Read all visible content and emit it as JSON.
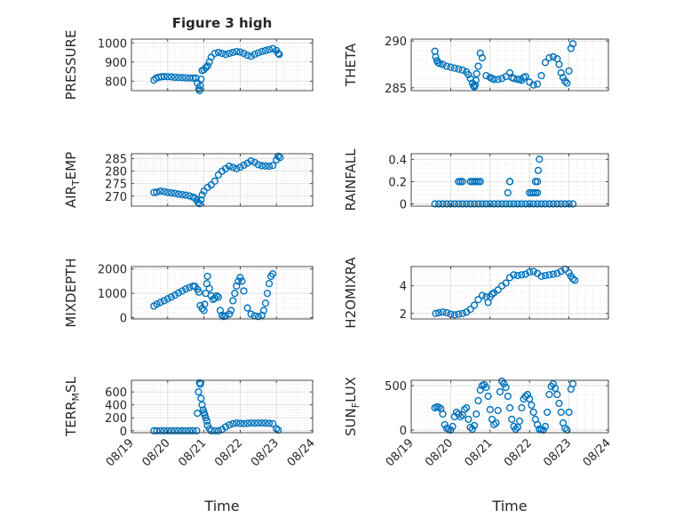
{
  "figure": {
    "background": "#ffffff",
    "marker_color": "#0072BD",
    "x_title": "Time",
    "x_tick_labels": [
      "08/19",
      "08/20",
      "08/21",
      "08/22",
      "08/23",
      "08/24"
    ]
  },
  "chart_data": [
    {
      "type": "scatter",
      "title": "Figure 3 high",
      "ylabel": "PRESSURE",
      "ylim": [
        750,
        1020
      ],
      "yticks": [
        800,
        900,
        1000
      ],
      "xlim": [
        0,
        5
      ],
      "grid": true,
      "series": [
        {
          "x": [
            0.62,
            0.68,
            0.75,
            0.82,
            0.9,
            1,
            1.1,
            1.2,
            1.3,
            1.4,
            1.5,
            1.6,
            1.7,
            1.78,
            1.82,
            1.86,
            1.88,
            1.9,
            1.92,
            1.95,
            2,
            2.05,
            2.1,
            2.15,
            2.2,
            2.3,
            2.4,
            2.5,
            2.6,
            2.7,
            2.8,
            2.9,
            3,
            3.1,
            3.2,
            3.3,
            3.4,
            3.5,
            3.6,
            3.7,
            3.8,
            3.9,
            4,
            4.05,
            4.08
          ],
          "y": [
            805,
            815,
            820,
            822,
            824,
            823,
            822,
            820,
            819,
            818,
            817,
            816,
            816,
            815,
            790,
            760,
            750,
            775,
            810,
            855,
            860,
            870,
            880,
            900,
            925,
            945,
            950,
            945,
            940,
            945,
            950,
            955,
            952,
            945,
            935,
            930,
            940,
            948,
            955,
            960,
            965,
            970,
            960,
            945,
            940
          ]
        }
      ]
    },
    {
      "type": "scatter",
      "ylabel": "THETA",
      "ylim": [
        284.7,
        290.2
      ],
      "yticks": [
        285,
        290
      ],
      "xlim": [
        0,
        5
      ],
      "grid": true,
      "series": [
        {
          "x": [
            0.6,
            0.62,
            0.65,
            0.68,
            0.72,
            0.8,
            0.9,
            1,
            1.1,
            1.2,
            1.3,
            1.4,
            1.45,
            1.5,
            1.55,
            1.58,
            1.6,
            1.62,
            1.64,
            1.66,
            1.7,
            1.75,
            1.8,
            1.9,
            2,
            2.05,
            2.1,
            2.2,
            2.3,
            2.4,
            2.5,
            2.55,
            2.6,
            2.7,
            2.75,
            2.8,
            2.85,
            2.9,
            3,
            3.1,
            3.2,
            3.3,
            3.4,
            3.5,
            3.6,
            3.7,
            3.75,
            3.8,
            3.85,
            3.9,
            3.95,
            4,
            4.05,
            4.1
          ],
          "y": [
            288.9,
            288.3,
            287.9,
            287.7,
            287.6,
            287.5,
            287.3,
            287.2,
            287.1,
            287,
            286.9,
            286.7,
            286.4,
            286,
            285.5,
            285.2,
            285.1,
            285.3,
            285.8,
            286.5,
            287.3,
            288.7,
            288.2,
            286.3,
            286.1,
            286,
            285.9,
            285.9,
            286,
            286.2,
            286.6,
            286.1,
            286,
            285.9,
            285.9,
            285.8,
            286.1,
            286.2,
            285.6,
            285.3,
            285.4,
            286.3,
            287.7,
            288.2,
            288.3,
            288.1,
            287.5,
            286.6,
            286.1,
            285.7,
            285.5,
            286.8,
            289.2,
            289.7
          ]
        }
      ]
    },
    {
      "type": "scatter",
      "ylabel": "AIR_TEMP",
      "ylim": [
        266,
        287
      ],
      "yticks": [
        270,
        275,
        280,
        285
      ],
      "xlim": [
        0,
        5
      ],
      "grid": true,
      "series": [
        {
          "x": [
            0.62,
            0.7,
            0.8,
            0.9,
            1,
            1.1,
            1.2,
            1.3,
            1.4,
            1.5,
            1.6,
            1.7,
            1.75,
            1.8,
            1.84,
            1.88,
            1.92,
            1.95,
            2,
            2.1,
            2.2,
            2.3,
            2.4,
            2.5,
            2.6,
            2.7,
            2.8,
            2.9,
            3,
            3.1,
            3.2,
            3.3,
            3.4,
            3.5,
            3.6,
            3.7,
            3.8,
            3.9,
            4,
            4.05,
            4.1
          ],
          "y": [
            271.5,
            271.6,
            272,
            271.8,
            271.5,
            271.3,
            271.1,
            270.8,
            270.6,
            270.4,
            270.1,
            269.6,
            269.2,
            268.5,
            267.5,
            267,
            268.5,
            270.5,
            272,
            273.5,
            274.5,
            276,
            278.5,
            280,
            281,
            282,
            281.5,
            281,
            281.6,
            282.4,
            283.2,
            284.1,
            283.5,
            282.6,
            282.2,
            282.1,
            282,
            282.3,
            284.5,
            286,
            285.5
          ]
        }
      ]
    },
    {
      "type": "scatter",
      "ylabel": "RAINFALL",
      "ylim": [
        -0.02,
        0.45
      ],
      "yticks": [
        0,
        0.2,
        0.4
      ],
      "xlim": [
        0,
        5
      ],
      "grid": true,
      "series": [
        {
          "x": [
            0.6,
            0.7,
            0.8,
            0.9,
            1,
            1.1,
            1.2,
            1.3,
            1.4,
            1.5,
            1.6,
            1.7,
            1.8,
            1.9,
            2,
            2.1,
            2.2,
            2.3,
            2.4,
            2.5,
            2.6,
            2.7,
            2.8,
            2.9,
            3,
            3.1,
            3.2,
            3.3,
            3.4,
            3.5,
            3.6,
            3.7,
            3.8,
            3.9,
            4,
            4.1,
            1.2,
            1.25,
            1.3,
            1.5,
            1.55,
            1.6,
            1.65,
            1.7,
            1.75,
            2.45,
            2.5,
            2.5,
            3.0,
            3.05,
            3.1,
            3.15,
            3.2,
            3.15,
            3.2,
            3.22,
            3.25
          ],
          "y": [
            0,
            0,
            0,
            0,
            0,
            0,
            0,
            0,
            0,
            0,
            0,
            0,
            0,
            0,
            0,
            0,
            0,
            0,
            0,
            0,
            0,
            0,
            0,
            0,
            0,
            0,
            0,
            0,
            0,
            0,
            0,
            0,
            0,
            0,
            0,
            0,
            0.2,
            0.2,
            0.2,
            0.2,
            0.2,
            0.2,
            0.2,
            0.2,
            0.2,
            0.1,
            0.2,
            0.2,
            0.1,
            0.1,
            0.1,
            0.1,
            0.1,
            0.2,
            0.2,
            0.3,
            0.4
          ]
        }
      ]
    },
    {
      "type": "scatter",
      "ylabel": "MIXDEPTH",
      "ylim": [
        -50,
        2100
      ],
      "yticks": [
        0,
        1000,
        2000
      ],
      "xlim": [
        0,
        5
      ],
      "grid": true,
      "series": [
        {
          "x": [
            0.62,
            0.7,
            0.8,
            0.9,
            1,
            1.1,
            1.2,
            1.3,
            1.4,
            1.5,
            1.6,
            1.7,
            1.75,
            1.82,
            1.86,
            1.9,
            1.95,
            2,
            2.02,
            2.05,
            2.08,
            2.1,
            2.15,
            2.2,
            2.25,
            2.3,
            2.35,
            2.4,
            2.45,
            2.5,
            2.55,
            2.6,
            2.7,
            2.75,
            2.8,
            2.85,
            2.9,
            2.95,
            3,
            3.05,
            3.1,
            3.2,
            3.3,
            3.4,
            3.5,
            3.6,
            3.65,
            3.7,
            3.75,
            3.8,
            3.85,
            3.9
          ],
          "y": [
            480,
            560,
            630,
            700,
            780,
            850,
            930,
            1020,
            1100,
            1180,
            1240,
            1300,
            1290,
            1170,
            1050,
            500,
            380,
            300,
            550,
            1000,
            1400,
            1700,
            1200,
            900,
            750,
            800,
            900,
            850,
            300,
            100,
            50,
            80,
            150,
            300,
            700,
            1000,
            1300,
            1500,
            1650,
            1500,
            1100,
            400,
            150,
            80,
            50,
            100,
            300,
            600,
            1000,
            1400,
            1700,
            1800
          ]
        }
      ]
    },
    {
      "type": "scatter",
      "ylabel": "H2OMIXRA",
      "ylim": [
        1.6,
        5.4
      ],
      "yticks": [
        2,
        4
      ],
      "xlim": [
        0,
        5
      ],
      "grid": true,
      "series": [
        {
          "x": [
            0.62,
            0.7,
            0.8,
            0.9,
            1,
            1.1,
            1.2,
            1.3,
            1.4,
            1.5,
            1.6,
            1.7,
            1.8,
            1.9,
            1.95,
            2,
            2.05,
            2.1,
            2.2,
            2.3,
            2.4,
            2.5,
            2.6,
            2.7,
            2.8,
            2.9,
            3,
            3.1,
            3.2,
            3.3,
            3.4,
            3.5,
            3.6,
            3.7,
            3.8,
            3.9,
            4,
            4.05,
            4.1,
            4.15
          ],
          "y": [
            2,
            2.05,
            2.1,
            2.05,
            1.95,
            1.9,
            1.95,
            2,
            2.1,
            2.3,
            2.6,
            3.0,
            3.3,
            3.2,
            2.8,
            3.2,
            3.4,
            3.5,
            3.7,
            4.0,
            4.2,
            4.6,
            4.8,
            4.75,
            4.8,
            4.85,
            5.0,
            5.05,
            4.9,
            4.7,
            4.75,
            4.8,
            4.85,
            4.9,
            5.05,
            5.2,
            4.95,
            4.7,
            4.5,
            4.4
          ]
        }
      ]
    },
    {
      "type": "scatter",
      "ylabel": "TERR_MSL",
      "ylim": [
        -30,
        780
      ],
      "yticks": [
        0,
        200,
        400,
        600
      ],
      "xlim": [
        0,
        5
      ],
      "grid": true,
      "series": [
        {
          "x": [
            0.62,
            0.7,
            0.8,
            0.9,
            1,
            1.1,
            1.2,
            1.3,
            1.4,
            1.5,
            1.6,
            1.7,
            1.8,
            1.82,
            1.85,
            1.88,
            1.9,
            1.92,
            1.95,
            1.98,
            2,
            2.02,
            2.05,
            2.08,
            2.1,
            2.15,
            2.2,
            2.3,
            2.4,
            2.5,
            2.6,
            2.7,
            2.8,
            2.9,
            3,
            3.1,
            3.2,
            3.3,
            3.4,
            3.5,
            3.6,
            3.7,
            3.8,
            3.9,
            4,
            4.05
          ],
          "y": [
            0,
            0,
            0,
            0,
            0,
            0,
            0,
            0,
            0,
            0,
            0,
            0,
            0,
            270,
            600,
            740,
            720,
            500,
            400,
            320,
            280,
            250,
            200,
            150,
            80,
            30,
            0,
            0,
            0,
            20,
            60,
            90,
            110,
            120,
            115,
            110,
            115,
            120,
            118,
            120,
            120,
            118,
            115,
            110,
            30,
            10
          ]
        }
      ]
    },
    {
      "type": "scatter",
      "ylabel": "SUN_FLUX",
      "ylim": [
        -30,
        560
      ],
      "yticks": [
        0,
        500
      ],
      "xlim": [
        0,
        5
      ],
      "grid": true,
      "series": [
        {
          "x": [
            0.6,
            0.65,
            0.7,
            0.75,
            0.8,
            0.85,
            0.9,
            0.95,
            1,
            1.05,
            1.1,
            1.15,
            1.2,
            1.25,
            1.3,
            1.35,
            1.4,
            1.45,
            1.5,
            1.55,
            1.6,
            1.65,
            1.7,
            1.75,
            1.8,
            1.85,
            1.9,
            1.95,
            2,
            2.05,
            2.1,
            2.15,
            2.2,
            2.25,
            2.3,
            2.35,
            2.4,
            2.45,
            2.5,
            2.55,
            2.6,
            2.65,
            2.7,
            2.75,
            2.8,
            2.85,
            2.9,
            2.95,
            3,
            3.05,
            3.1,
            3.15,
            3.2,
            3.25,
            3.3,
            3.35,
            3.4,
            3.45,
            3.5,
            3.55,
            3.6,
            3.65,
            3.7,
            3.75,
            3.8,
            3.85,
            3.9,
            3.95,
            4,
            4.05,
            4.1
          ],
          "y": [
            250,
            260,
            255,
            240,
            180,
            60,
            20,
            10,
            0,
            40,
            150,
            200,
            180,
            150,
            170,
            230,
            250,
            120,
            30,
            10,
            50,
            180,
            330,
            450,
            500,
            510,
            480,
            380,
            230,
            120,
            60,
            80,
            220,
            430,
            550,
            520,
            480,
            380,
            250,
            120,
            40,
            10,
            30,
            100,
            250,
            350,
            380,
            400,
            350,
            280,
            200,
            120,
            60,
            10,
            5,
            0,
            40,
            200,
            400,
            490,
            520,
            470,
            400,
            300,
            200,
            80,
            20,
            0,
            200,
            460,
            520
          ]
        }
      ]
    }
  ]
}
